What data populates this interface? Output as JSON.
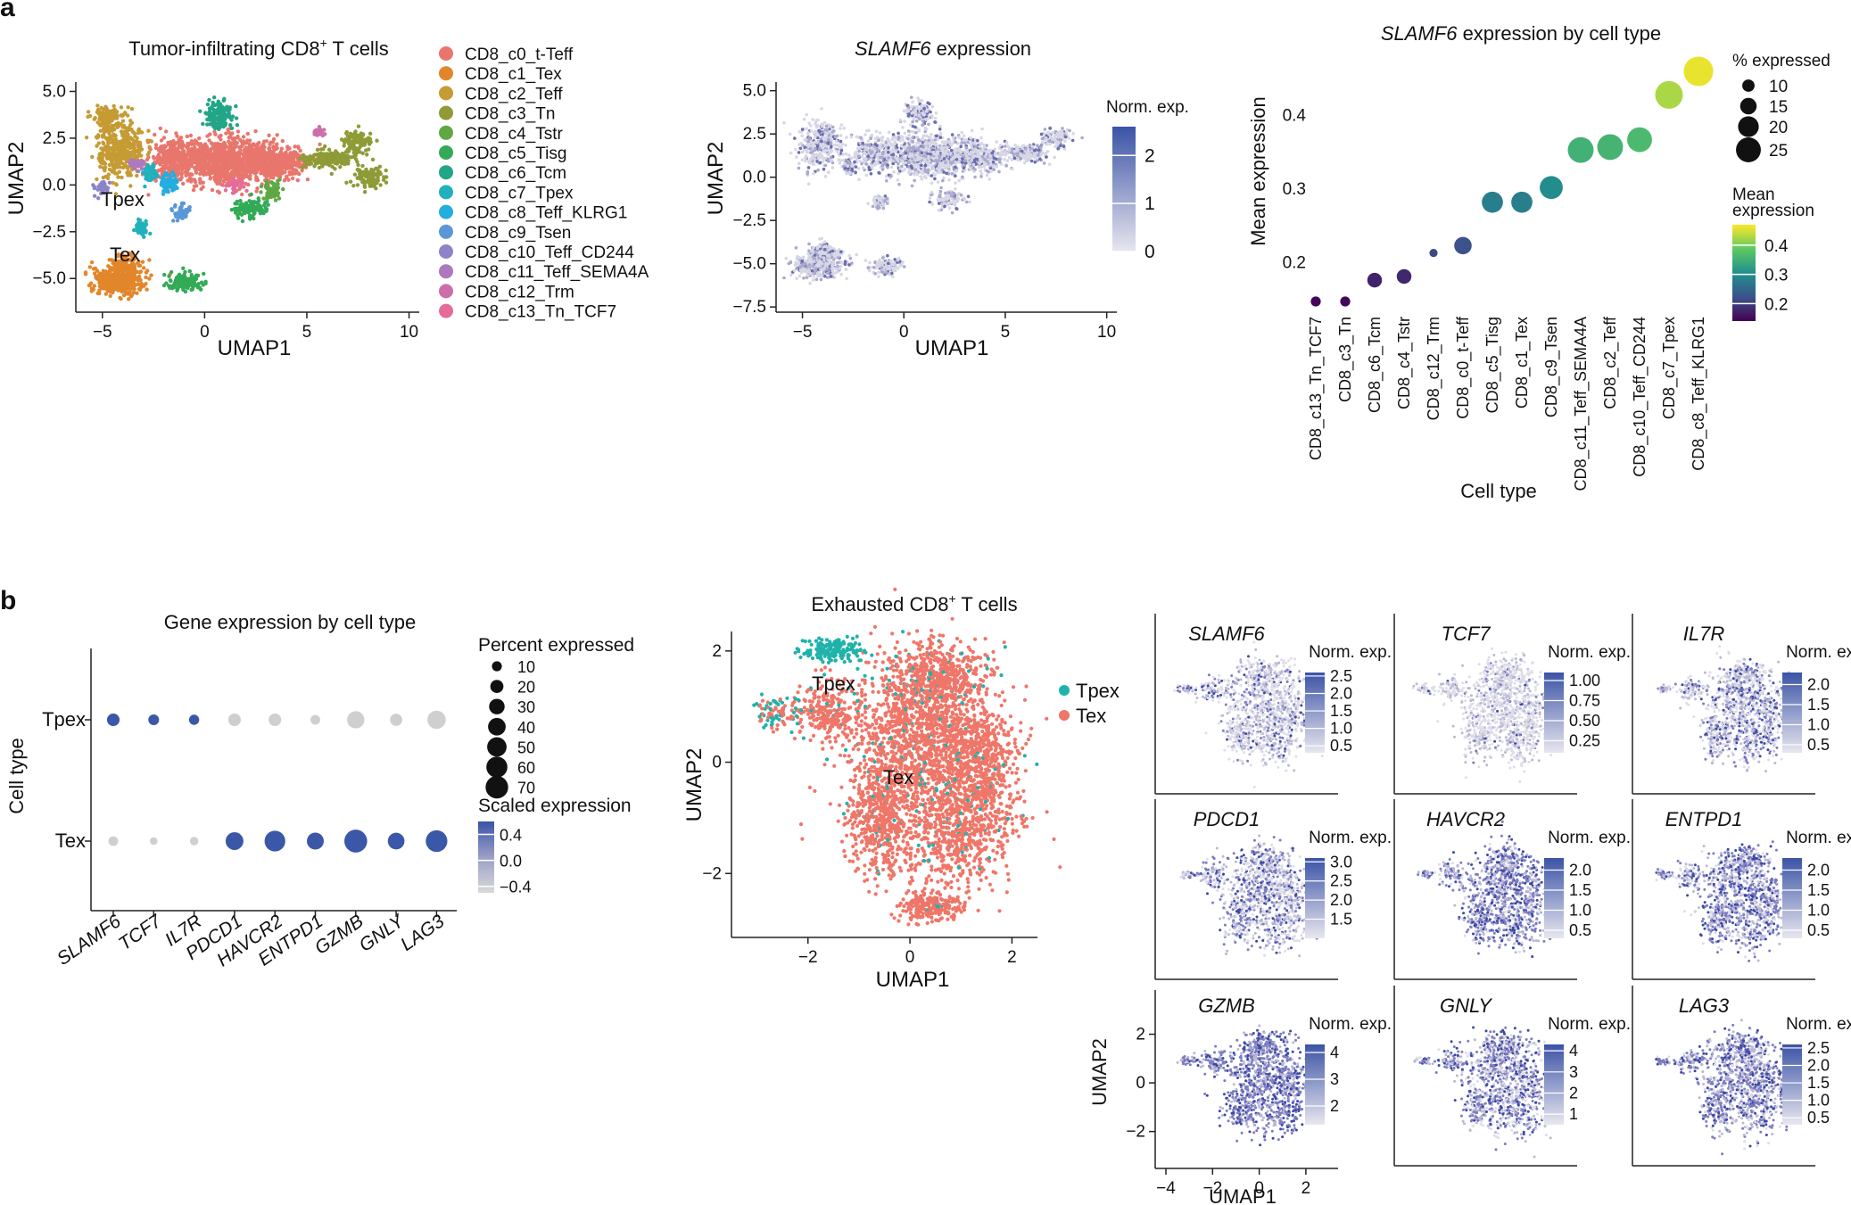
{
  "panel_labels": {
    "a": "a",
    "b": "b"
  },
  "chart_data": [
    {
      "id": "umap_all",
      "type": "scatter",
      "title": "Tumor-infiltrating CD8",
      "title_sup": "+",
      "title_suffix": " T cells",
      "xlabel": "UMAP1",
      "ylabel": "UMAP2",
      "xlim": [
        -6.3,
        10.5
      ],
      "ylim": [
        -6.8,
        5.5
      ],
      "xticks": [
        -5,
        0,
        5,
        10
      ],
      "yticks": [
        5.0,
        2.5,
        0.0,
        -2.5,
        -5.0
      ],
      "xtick_labels": [
        "−5",
        "0",
        "5",
        "10"
      ],
      "ytick_labels": [
        "5.0",
        "2.5",
        "0.0",
        "−2.5",
        "−5.0"
      ],
      "annotations": [
        {
          "text": "Tpex",
          "x": -4.0,
          "y": -1.3
        },
        {
          "text": "Tex",
          "x": -4.0,
          "y": -4.7
        }
      ],
      "legend": [
        {
          "label": "CD8_c0_t-Teff",
          "color": "#e8766d"
        },
        {
          "label": "CD8_c1_Tex",
          "color": "#e2862b"
        },
        {
          "label": "CD8_c2_Teff",
          "color": "#c59b33"
        },
        {
          "label": "CD8_c3_Tn",
          "color": "#8e9b36"
        },
        {
          "label": "CD8_c4_Tstr",
          "color": "#5fa843"
        },
        {
          "label": "CD8_c5_Tisg",
          "color": "#32aa57"
        },
        {
          "label": "CD8_c6_Tcm",
          "color": "#23a587"
        },
        {
          "label": "CD8_c7_Tpex",
          "color": "#20b1bd"
        },
        {
          "label": "CD8_c8_Teff_KLRG1",
          "color": "#22aede"
        },
        {
          "label": "CD8_c9_Tsen",
          "color": "#5b97d6"
        },
        {
          "label": "CD8_c10_Teff_CD244",
          "color": "#8d84c7"
        },
        {
          "label": "CD8_c11_Teff_SEMA4A",
          "color": "#ad79bd"
        },
        {
          "label": "CD8_c12_Trm",
          "color": "#cc6ea8"
        },
        {
          "label": "CD8_c13_Tn_TCF7",
          "color": "#e56b9a"
        }
      ]
    },
    {
      "id": "umap_slamf6",
      "type": "scatter",
      "title_gene": "SLAMF6",
      "title_suffix": " expression",
      "xlabel": "UMAP1",
      "ylabel": "UMAP2",
      "xlim": [
        -6.3,
        10.5
      ],
      "ylim": [
        -7.8,
        5.5
      ],
      "xticks": [
        -5,
        0,
        5,
        10
      ],
      "yticks": [
        5.0,
        2.5,
        0.0,
        -2.5,
        -5.0,
        -7.5
      ],
      "xtick_labels": [
        "−5",
        "0",
        "5",
        "10"
      ],
      "ytick_labels": [
        "5.0",
        "2.5",
        "0.0",
        "−2.5",
        "−5.0",
        "−7.5"
      ],
      "colorbar": {
        "title": "Norm. exp.",
        "range": [
          0,
          2.6
        ],
        "ticks": [
          2,
          1,
          0
        ],
        "tick_labels": [
          "2",
          "1",
          "0"
        ],
        "low": "#e6e5ee",
        "high": "#3b53a6"
      }
    },
    {
      "id": "dot_slamf6",
      "type": "scatter",
      "title_gene": "SLAMF6",
      "title_suffix": " expression by cell type",
      "xlabel": "Cell type",
      "ylabel": "Mean expression",
      "ylim": [
        0.14,
        0.47
      ],
      "yticks": [
        0.2,
        0.3,
        0.4
      ],
      "ytick_labels": [
        "0.2",
        "0.3",
        "0.4"
      ],
      "categories": [
        "CD8_c13_Tn_TCF7",
        "CD8_c3_Tn",
        "CD8_c6_Tcm",
        "CD8_c4_Tstr",
        "CD8_c12_Trm",
        "CD8_c0_t-Teff",
        "CD8_c5_Tisg",
        "CD8_c1_Tex",
        "CD8_c9_Tsen",
        "CD8_c11_Teff_SEMA4A",
        "CD8_c2_Teff",
        "CD8_c10_Teff_CD244",
        "CD8_c7_Tpex",
        "CD8_c8_Teff_KLRG1"
      ],
      "mean_expression": [
        0.146,
        0.146,
        0.175,
        0.18,
        0.212,
        0.222,
        0.281,
        0.281,
        0.301,
        0.352,
        0.356,
        0.366,
        0.427,
        0.459
      ],
      "pct_expressed": [
        6,
        6,
        11,
        11,
        4,
        14,
        18,
        18,
        20,
        23,
        23,
        22,
        25,
        27
      ],
      "size_legend": {
        "title": "% expressed",
        "values": [
          10,
          15,
          20,
          25
        ],
        "labels": [
          "10",
          "15",
          "20",
          "25"
        ]
      },
      "color_legend": {
        "title_line1": "Mean",
        "title_line2": "expression",
        "range": [
          0.14,
          0.47
        ],
        "ticks": [
          0.4,
          0.3,
          0.2
        ],
        "tick_labels": [
          "0.4",
          "0.3",
          "0.2"
        ]
      }
    },
    {
      "id": "dot_genes",
      "type": "scatter",
      "title": "Gene expression by cell type",
      "ylabel": "Cell type",
      "rows": [
        "Tpex",
        "Tex"
      ],
      "genes": [
        "SLAMF6",
        "TCF7",
        "IL7R",
        "PDCD1",
        "HAVCR2",
        "ENTPD1",
        "GZMB",
        "GNLY",
        "LAG3"
      ],
      "pct_expressed": {
        "Tpex": [
          12,
          8,
          7,
          12,
          12,
          6,
          26,
          11,
          30
        ],
        "Tex": [
          6,
          3,
          4,
          28,
          40,
          25,
          50,
          24,
          44
        ]
      },
      "scaled_expression": {
        "Tpex": [
          0.55,
          0.55,
          0.55,
          -0.4,
          -0.4,
          -0.4,
          -0.4,
          -0.4,
          -0.4
        ],
        "Tex": [
          -0.4,
          -0.4,
          -0.4,
          0.5,
          0.5,
          0.5,
          0.5,
          0.5,
          0.5
        ]
      },
      "size_legend": {
        "title": "Percent expressed",
        "values": [
          10,
          20,
          30,
          40,
          50,
          60,
          70
        ],
        "labels": [
          "10",
          "20",
          "30",
          "40",
          "50",
          "60",
          "70"
        ]
      },
      "color_legend": {
        "title": "Scaled expression",
        "range": [
          -0.5,
          0.6
        ],
        "ticks": [
          0.4,
          0.0,
          -0.4
        ],
        "tick_labels": [
          "0.4",
          "0.0",
          "−0.4"
        ]
      }
    },
    {
      "id": "umap_exhausted",
      "type": "scatter",
      "title": "Exhausted CD8",
      "title_sup": "+",
      "title_suffix": " T cells",
      "xlabel": "UMAP1",
      "ylabel": "UMAP2",
      "xlim": [
        -3.5,
        2.5
      ],
      "ylim": [
        -3.15,
        2.35
      ],
      "xticks": [
        -2,
        0,
        2
      ],
      "yticks": [
        2,
        0,
        -2
      ],
      "xtick_labels": [
        "−2",
        "0",
        "2"
      ],
      "ytick_labels": [
        "2",
        "0",
        "−2"
      ],
      "annotations": [
        {
          "text": "Tpex",
          "x": -1.4,
          "y": 1.65
        },
        {
          "text": "Tex",
          "x": -0.2,
          "y": -0.15
        }
      ],
      "legend": [
        {
          "label": "Tpex",
          "color": "#20b2aa"
        },
        {
          "label": "Tex",
          "color": "#ef7668"
        }
      ]
    },
    {
      "id": "feature_grid",
      "type": "scatter",
      "xlabel": "UMAP1",
      "ylabel": "UMAP2",
      "xticks": [
        -4,
        -2,
        0,
        2
      ],
      "yticks": [
        2,
        0,
        -2
      ],
      "xtick_labels": [
        "−4",
        "−2",
        "0",
        "2"
      ],
      "ytick_labels": [
        "2",
        "0",
        "−2"
      ],
      "colorbar_title": "Norm. exp.",
      "panels": [
        {
          "gene": "SLAMF6",
          "range": [
            0.3,
            2.6
          ],
          "ticks": [
            "2.5",
            "2.0",
            "1.5",
            "1.0",
            "0.5"
          ],
          "tick_values": [
            2.5,
            2.0,
            1.5,
            1.0,
            0.5
          ]
        },
        {
          "gene": "TCF7",
          "range": [
            0.1,
            1.1
          ],
          "ticks": [
            "1.00",
            "0.75",
            "0.50",
            "0.25"
          ],
          "tick_values": [
            1.0,
            0.75,
            0.5,
            0.25
          ]
        },
        {
          "gene": "IL7R",
          "range": [
            0.3,
            2.3
          ],
          "ticks": [
            "2.0",
            "1.5",
            "1.0",
            "0.5"
          ],
          "tick_values": [
            2.0,
            1.5,
            1.0,
            0.5
          ]
        },
        {
          "gene": "PDCD1",
          "range": [
            1.0,
            3.1
          ],
          "ticks": [
            "3.0",
            "2.5",
            "2.0",
            "1.5"
          ],
          "tick_values": [
            3.0,
            2.5,
            2.0,
            1.5
          ]
        },
        {
          "gene": "HAVCR2",
          "range": [
            0.3,
            2.3
          ],
          "ticks": [
            "2.0",
            "1.5",
            "1.0",
            "0.5"
          ],
          "tick_values": [
            2.0,
            1.5,
            1.0,
            0.5
          ]
        },
        {
          "gene": "ENTPD1",
          "range": [
            0.3,
            2.3
          ],
          "ticks": [
            "2.0",
            "1.5",
            "1.0",
            "0.5"
          ],
          "tick_values": [
            2.0,
            1.5,
            1.0,
            0.5
          ]
        },
        {
          "gene": "GZMB",
          "range": [
            1.3,
            4.3
          ],
          "ticks": [
            "4",
            "3",
            "2"
          ],
          "tick_values": [
            4,
            3,
            2
          ]
        },
        {
          "gene": "GNLY",
          "range": [
            0.5,
            4.3
          ],
          "ticks": [
            "4",
            "3",
            "2",
            "1"
          ],
          "tick_values": [
            4,
            3,
            2,
            1
          ]
        },
        {
          "gene": "LAG3",
          "range": [
            0.3,
            2.6
          ],
          "ticks": [
            "2.5",
            "2.0",
            "1.5",
            "1.0",
            "0.5"
          ],
          "tick_values": [
            2.5,
            2.0,
            1.5,
            1.0,
            0.5
          ]
        }
      ]
    }
  ]
}
